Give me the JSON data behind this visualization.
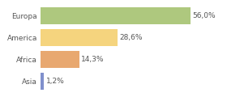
{
  "categories": [
    "Europa",
    "America",
    "Africa",
    "Asia"
  ],
  "values": [
    56.0,
    28.6,
    14.3,
    1.2
  ],
  "labels": [
    "56,0%",
    "28,6%",
    "14,3%",
    "1,2%"
  ],
  "colors": [
    "#aec87e",
    "#f5d47e",
    "#e8a870",
    "#8090cc"
  ],
  "background_color": "#ffffff",
  "bar_background": "#f0f0f0",
  "xlim": [
    0,
    68
  ],
  "bar_height": 0.78,
  "label_fontsize": 6.5,
  "tick_fontsize": 6.5,
  "label_color": "#555555",
  "tick_color": "#555555"
}
